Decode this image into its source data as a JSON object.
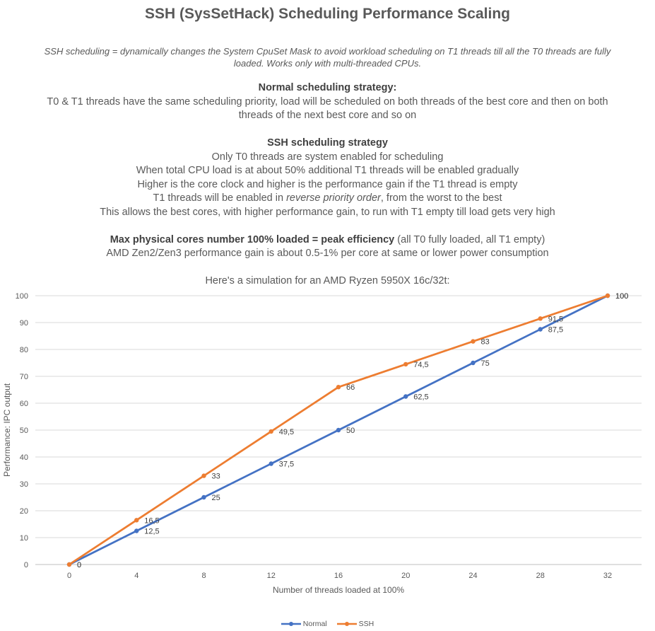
{
  "title": "SSH (SysSetHack) Scheduling Performance Scaling",
  "notes": {
    "definition_label": "SSH scheduling",
    "definition_text": "  = dynamically changes the System CpuSet Mask to avoid workload scheduling on T1 threads till all the T0 threads are fully loaded. Works only with multi-threaded CPUs.",
    "normal_heading": "Normal scheduling strategy:",
    "normal_text": "T0 & T1 threads have the same scheduling priority, load will be scheduled on both threads of the best core and then on both threads of the next best core and so on",
    "ssh_heading": "SSH scheduling strategy",
    "ssh_lines": [
      "Only T0 threads are system enabled for scheduling",
      "When total CPU load is at about 50% additional T1 threads will be enabled gradually",
      "Higher is the core clock and higher is the performance gain if the T1 thread is empty"
    ],
    "reverse_pre": "T1 threads will be enabled in ",
    "reverse_italic": "reverse priority order",
    "reverse_post": ", from the worst to the best",
    "ssh_last": "This allows the best cores, with higher performance gain, to run with T1 empty till load gets very high",
    "peak_bold": "Max physical cores number 100% loaded = peak efficiency",
    "peak_text": " (all T0 fully loaded, all T1 empty)",
    "amd_text": "AMD Zen2/Zen3 performance gain is about 0.5-1% per core at same or lower power consumption",
    "simulation": "Here's a simulation for an AMD Ryzen 5950X 16c/32t:"
  },
  "chart_data": {
    "type": "line",
    "x": [
      0,
      4,
      8,
      12,
      16,
      20,
      24,
      28,
      32
    ],
    "series": [
      {
        "name": "Normal",
        "color": "#4472C4",
        "values": [
          0,
          12.5,
          25,
          37.5,
          50,
          62.5,
          75,
          87.5,
          100
        ],
        "labels": [
          "0",
          "12,5",
          "25",
          "37,5",
          "50",
          "62,5",
          "75",
          "87,5",
          "100"
        ]
      },
      {
        "name": "SSH",
        "color": "#ED7D31",
        "values": [
          0,
          16.5,
          33,
          49.5,
          66,
          74.5,
          83,
          91.5,
          100
        ],
        "labels": [
          "0",
          "16,5",
          "33",
          "49,5",
          "66",
          "74,5",
          "83",
          "91,5",
          "100"
        ]
      }
    ],
    "xlabel": "Number of threads loaded at 100%",
    "ylabel": "Performance: IPC output",
    "xlim": [
      0,
      32
    ],
    "ylim": [
      0,
      100
    ],
    "xticks": [
      0,
      4,
      8,
      12,
      16,
      20,
      24,
      28,
      32
    ],
    "yticks": [
      0,
      10,
      20,
      30,
      40,
      50,
      60,
      70,
      80,
      90,
      100
    ],
    "grid": true,
    "legend": "bottom-center"
  }
}
